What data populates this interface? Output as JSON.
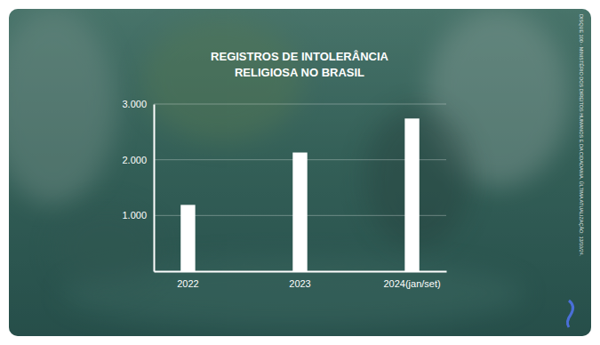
{
  "chart_data": {
    "type": "bar",
    "title": "REGISTROS DE INTOLERÂNCIA RELIGIOSA NO BRASIL",
    "source": "DISQUE 100 - MINISTÉRIO DOS DIREITOS HUMANOS E DA CIDADANIA. ÚLTIMA ATUALIZAÇÃO: 13/10/24.",
    "categories": [
      "2022",
      "2023",
      "2024(jan/set)"
    ],
    "values": [
      1190,
      2130,
      2740
    ],
    "color": "#ffffff",
    "ylim": [
      0,
      3000
    ],
    "yticks": [
      {
        "value": 1000,
        "label": "1.000"
      },
      {
        "value": 2000,
        "label": "2.000"
      },
      {
        "value": 3000,
        "label": "3.000"
      }
    ],
    "grid": true
  }
}
